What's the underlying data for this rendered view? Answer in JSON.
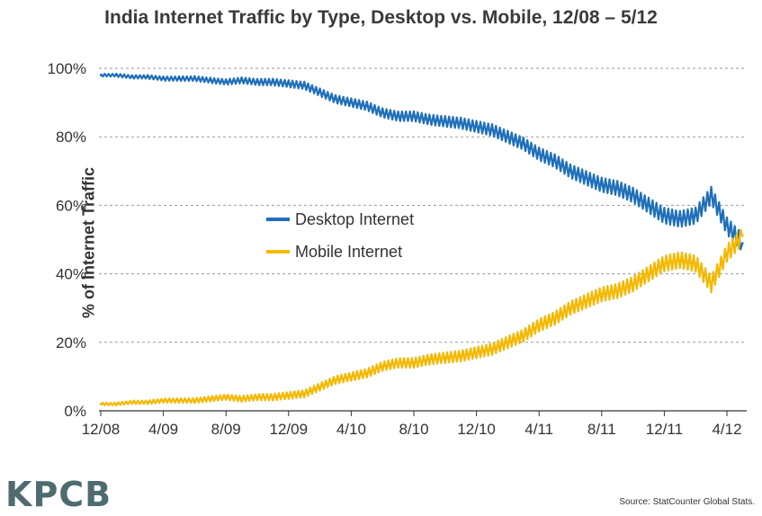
{
  "chart_data": {
    "type": "line",
    "title": "India Internet Traffic by Type, Desktop vs. Mobile, 12/08 – 5/12",
    "xlabel": "",
    "ylabel": "% of Internet Traffic",
    "x_tick_labels": [
      "12/08",
      "4/09",
      "8/09",
      "12/09",
      "4/10",
      "8/10",
      "12/10",
      "4/11",
      "8/11",
      "12/11",
      "4/12"
    ],
    "y_tick_labels": [
      "0%",
      "20%",
      "40%",
      "60%",
      "80%",
      "100%"
    ],
    "ylim": [
      0,
      100
    ],
    "grid": "horizontal dashed",
    "legend_position": "center",
    "x": [
      "12/08",
      "1/09",
      "2/09",
      "3/09",
      "4/09",
      "5/09",
      "6/09",
      "7/09",
      "8/09",
      "9/09",
      "10/09",
      "11/09",
      "12/09",
      "1/10",
      "2/10",
      "3/10",
      "4/10",
      "5/10",
      "6/10",
      "7/10",
      "8/10",
      "9/10",
      "10/10",
      "11/10",
      "12/10",
      "1/11",
      "2/11",
      "3/11",
      "4/11",
      "5/11",
      "6/11",
      "7/11",
      "8/11",
      "9/11",
      "10/11",
      "11/11",
      "12/11",
      "1/12",
      "2/12",
      "3/12",
      "4/12",
      "5/12"
    ],
    "series": [
      {
        "name": "Desktop Internet",
        "color": "#1f6fba",
        "values": [
          98,
          98,
          97.5,
          97.5,
          97,
          97,
          97,
          96.5,
          96,
          96.5,
          96,
          96,
          95.5,
          95,
          93,
          91,
          90,
          89,
          87,
          86,
          86,
          85,
          84.5,
          84,
          83,
          82,
          80,
          78,
          75,
          73,
          70,
          68,
          66,
          65,
          63,
          60,
          57,
          56,
          57,
          63,
          54,
          49
        ]
      },
      {
        "name": "Mobile Internet",
        "color": "#f5b800",
        "values": [
          2,
          2,
          2.5,
          2.5,
          3,
          3,
          3,
          3.5,
          4,
          3.5,
          4,
          4,
          4.5,
          5,
          7,
          9,
          10,
          11,
          13,
          14,
          14,
          15,
          15.5,
          16,
          17,
          18,
          20,
          22,
          25,
          27,
          30,
          32,
          34,
          35,
          37,
          40,
          43,
          44,
          43,
          37,
          46,
          51
        ]
      }
    ]
  },
  "footer": {
    "logo": "KPCB",
    "source": "Source: StatCounter Global Stats."
  }
}
